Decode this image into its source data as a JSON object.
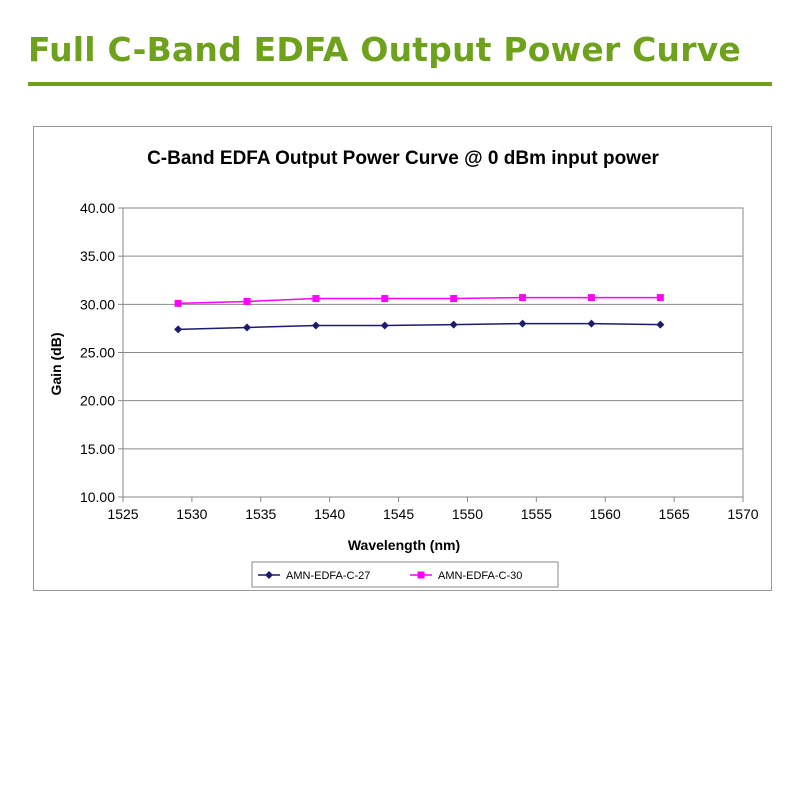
{
  "page": {
    "title": "Full C-Band EDFA Output Power Curve",
    "accent": "#6fa21c"
  },
  "chart_data": {
    "type": "line",
    "title": "C-Band EDFA Output Power Curve @ 0 dBm input power",
    "xlabel": "Wavelength (nm)",
    "ylabel": "Gain (dB)",
    "xlim": [
      1525,
      1570
    ],
    "ylim": [
      10,
      40
    ],
    "x_ticks": [
      "1525",
      "1530",
      "1535",
      "1540",
      "1545",
      "1550",
      "1555",
      "1560",
      "1565",
      "1570"
    ],
    "y_ticks": [
      "40.00",
      "35.00",
      "30.00",
      "25.00",
      "20.00",
      "15.00",
      "10.00"
    ],
    "grid": "horizontal",
    "legend_position": "bottom",
    "x": [
      1529,
      1534,
      1539,
      1544,
      1549,
      1554,
      1559,
      1564
    ],
    "series": [
      {
        "name": "AMN-EDFA-C-27",
        "color": "#1c1c6e",
        "marker": "diamond",
        "values": [
          27.4,
          27.6,
          27.8,
          27.8,
          27.9,
          28.0,
          28.0,
          27.9
        ]
      },
      {
        "name": "AMN-EDFA-C-30",
        "color": "#ff00ff",
        "marker": "square",
        "values": [
          30.1,
          30.3,
          30.6,
          30.6,
          30.6,
          30.7,
          30.7,
          30.7
        ]
      }
    ]
  }
}
